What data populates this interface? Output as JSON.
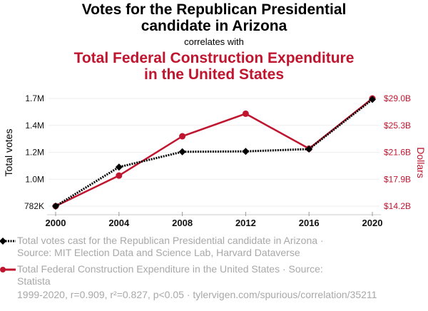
{
  "header": {
    "title_line1": "Votes for the Republican Presidential",
    "title_line2": "candidate in Arizona",
    "correlates": "correlates with",
    "subtitle_line1": "Total Federal Construction Expenditure",
    "subtitle_line2": "in the United States"
  },
  "legend": {
    "series1_line1": "Total votes cast for the Republican Presidential candidate in Arizona ·",
    "series1_line2": "Source: MIT Election Data and Science Lab, Harvard Dataverse",
    "series2_line1": "Total Federal Construction Expenditure in the United States · Source:",
    "series2_line2": "Statista"
  },
  "footer": "1999-2020, r=0.909, r²=0.827, p<0.05 · tylervigen.com/spurious/correlation/35211",
  "colors": {
    "votes": "#000000",
    "expenditure": "#c0152f",
    "grid": "#eeeeee",
    "muted": "#a8a8a8"
  },
  "chart_data": {
    "type": "line",
    "x": [
      2000,
      2004,
      2008,
      2012,
      2016,
      2020
    ],
    "xlabel": "",
    "x_ticks": [
      "2000",
      "2004",
      "2008",
      "2012",
      "2016",
      "2020"
    ],
    "y_left": {
      "label": "Total votes",
      "range": [
        782000,
        1670000
      ],
      "ticks": [
        782000,
        1004000,
        1226000,
        1448000,
        1670000
      ],
      "tick_labels": [
        "782K",
        "1.0M",
        "1.2M",
        "1.4M",
        "1.7M"
      ]
    },
    "y_right": {
      "label": "Dollars",
      "range": [
        14.2,
        29.0
      ],
      "ticks": [
        14.2,
        17.9,
        21.6,
        25.3,
        29.0
      ],
      "tick_labels": [
        "$14.2B",
        "$17.9B",
        "$21.6B",
        "$25.3B",
        "$29.0B"
      ]
    },
    "series": [
      {
        "name": "Total votes cast for the Republican Presidential candidate in Arizona",
        "axis": "left",
        "style": "dotted",
        "marker": "diamond",
        "values": [
          781652,
          1104294,
          1230111,
          1233654,
          1252401,
          1661686
        ]
      },
      {
        "name": "Total Federal Construction Expenditure in the United States",
        "axis": "right",
        "style": "solid",
        "marker": "circle",
        "values": [
          14.2,
          18.4,
          23.8,
          26.9,
          22.1,
          29.0
        ]
      }
    ],
    "grid": true,
    "legend_position": "bottom"
  }
}
